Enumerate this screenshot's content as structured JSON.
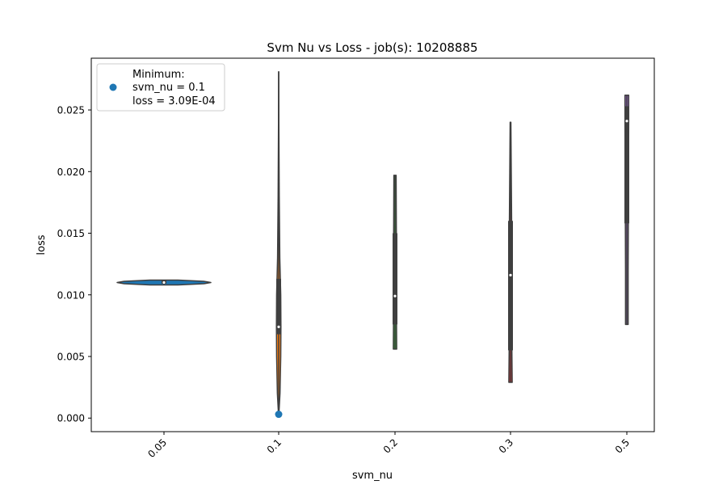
{
  "chart_data": {
    "type": "violin",
    "title": "Svm Nu vs Loss - job(s): 10208885",
    "xlabel": "svm_nu",
    "ylabel": "loss",
    "categories": [
      "0.05",
      "0.1",
      "0.2",
      "0.3",
      "0.5"
    ],
    "ylim": [
      -0.0011,
      0.0292
    ],
    "yticks": [
      "0.000",
      "0.005",
      "0.010",
      "0.015",
      "0.020",
      "0.025"
    ],
    "yticks_values": [
      0.0,
      0.005,
      0.01,
      0.015,
      0.02,
      0.025
    ],
    "grid": false,
    "violins": [
      {
        "category": "0.05",
        "color": "#1f77b4",
        "min": 0.0108,
        "max": 0.0112,
        "q1": 0.0109,
        "median": 0.011,
        "q3": 0.0112,
        "profile": [
          [
            0.0108,
            0.3
          ],
          [
            0.0109,
            0.85
          ],
          [
            0.011,
            1.0
          ],
          [
            0.0111,
            0.85
          ],
          [
            0.0112,
            0.3
          ]
        ]
      },
      {
        "category": "0.1",
        "color": "#ff7f0e",
        "min": 0.0003,
        "max": 0.0281,
        "q1": 0.0068,
        "median": 0.0074,
        "q3": 0.0113,
        "profile": [
          [
            0.0003,
            0.05
          ],
          [
            0.002,
            0.35
          ],
          [
            0.005,
            0.55
          ],
          [
            0.0074,
            0.6
          ],
          [
            0.01,
            0.55
          ],
          [
            0.013,
            0.3
          ],
          [
            0.018,
            0.15
          ],
          [
            0.024,
            0.05
          ],
          [
            0.0281,
            0.02
          ]
        ]
      },
      {
        "category": "0.2",
        "color": "#2ca02c",
        "min": 0.0056,
        "max": 0.0197,
        "q1": 0.0076,
        "median": 0.0099,
        "q3": 0.015,
        "profile": [
          [
            0.0056,
            0.45
          ],
          [
            0.008,
            0.4
          ],
          [
            0.0099,
            0.45
          ],
          [
            0.013,
            0.4
          ],
          [
            0.016,
            0.35
          ],
          [
            0.0197,
            0.3
          ]
        ]
      },
      {
        "category": "0.3",
        "color": "#d62728",
        "min": 0.0029,
        "max": 0.024,
        "q1": 0.0055,
        "median": 0.0116,
        "q3": 0.016,
        "profile": [
          [
            0.0029,
            0.45
          ],
          [
            0.006,
            0.35
          ],
          [
            0.0116,
            0.35
          ],
          [
            0.016,
            0.3
          ],
          [
            0.02,
            0.2
          ],
          [
            0.024,
            0.1
          ]
        ]
      },
      {
        "category": "0.5",
        "color": "#9467bd",
        "min": 0.0076,
        "max": 0.0262,
        "q1": 0.0158,
        "median": 0.0241,
        "q3": 0.0253,
        "profile": [
          [
            0.0076,
            0.35
          ],
          [
            0.012,
            0.35
          ],
          [
            0.016,
            0.4
          ],
          [
            0.02,
            0.45
          ],
          [
            0.024,
            0.5
          ],
          [
            0.0262,
            0.5
          ]
        ]
      }
    ],
    "minimum_point": {
      "category": "0.1",
      "loss": 0.000309,
      "color": "#1f77b4"
    },
    "legend": {
      "location": "upper left",
      "marker_color": "#1f77b4",
      "lines": [
        "Minimum:",
        "svm_nu = 0.1",
        "loss = 3.09E-04"
      ]
    }
  }
}
